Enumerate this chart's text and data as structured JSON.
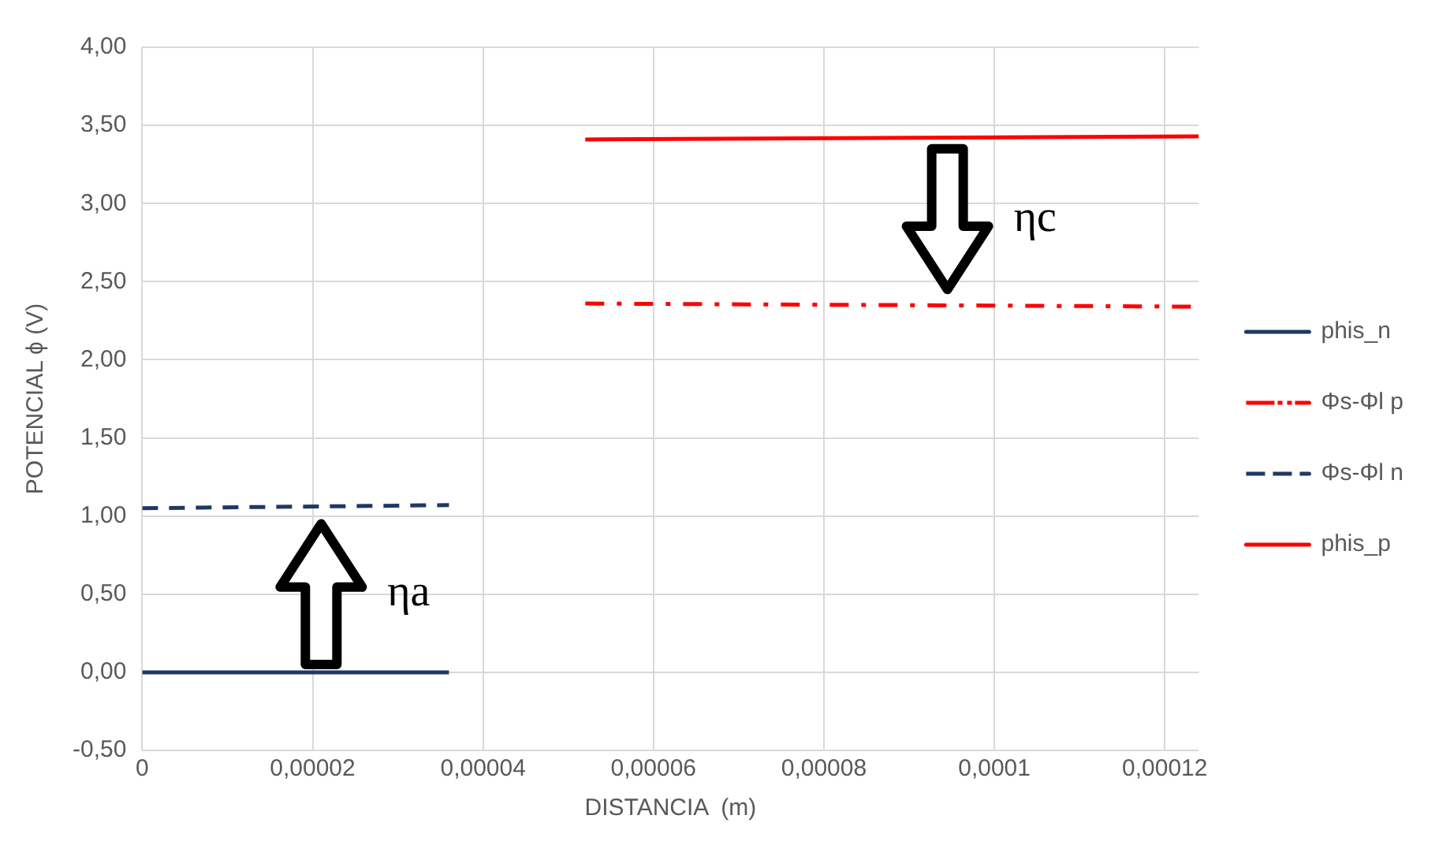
{
  "chart_data": {
    "type": "line",
    "xlabel": "DISTANCIA  (m)",
    "ylabel": "POTENCIAL ϕ (V)",
    "xlim": [
      0,
      0.000124
    ],
    "xticks": [
      {
        "value": 0,
        "label": "0"
      },
      {
        "value": 2e-05,
        "label": "0,00002"
      },
      {
        "value": 4e-05,
        "label": "0,00004"
      },
      {
        "value": 6e-05,
        "label": "0,00006"
      },
      {
        "value": 8e-05,
        "label": "0,00008"
      },
      {
        "value": 0.0001,
        "label": "0,0001"
      },
      {
        "value": 0.00012,
        "label": "0,00012"
      }
    ],
    "ylim": [
      -0.5,
      4
    ],
    "yticks": [
      {
        "value": -0.5,
        "label": "-0,50"
      },
      {
        "value": 0,
        "label": "0,00"
      },
      {
        "value": 0.5,
        "label": "0,50"
      },
      {
        "value": 1,
        "label": "1,00"
      },
      {
        "value": 1.5,
        "label": "1,50"
      },
      {
        "value": 2,
        "label": "2,00"
      },
      {
        "value": 2.5,
        "label": "2,50"
      },
      {
        "value": 3,
        "label": "3,00"
      },
      {
        "value": 3.5,
        "label": "3,50"
      },
      {
        "value": 4,
        "label": "4,00"
      }
    ],
    "grid": true,
    "legend": "right",
    "marker": "none",
    "series": [
      {
        "name": "phis_n",
        "color": "#1f3864",
        "line_style": "solid",
        "x": [
          0,
          3.6e-05
        ],
        "values": [
          0,
          0
        ]
      },
      {
        "name": "Φs-Φl p",
        "color": "#ff0000",
        "line_style": "dashdot",
        "x": [
          5.2e-05,
          0.000124
        ],
        "values": [
          2.36,
          2.34
        ]
      },
      {
        "name": "Φs-Φl n",
        "color": "#1f3864",
        "line_style": "dashed",
        "x": [
          0,
          3.6e-05
        ],
        "values": [
          1.05,
          1.07
        ]
      },
      {
        "name": "phis_p",
        "color": "#ff0000",
        "line_style": "solid",
        "x": [
          5.2e-05,
          0.000124
        ],
        "values": [
          3.41,
          3.43
        ]
      }
    ],
    "annotations": [
      "ηa",
      "ηc"
    ]
  }
}
